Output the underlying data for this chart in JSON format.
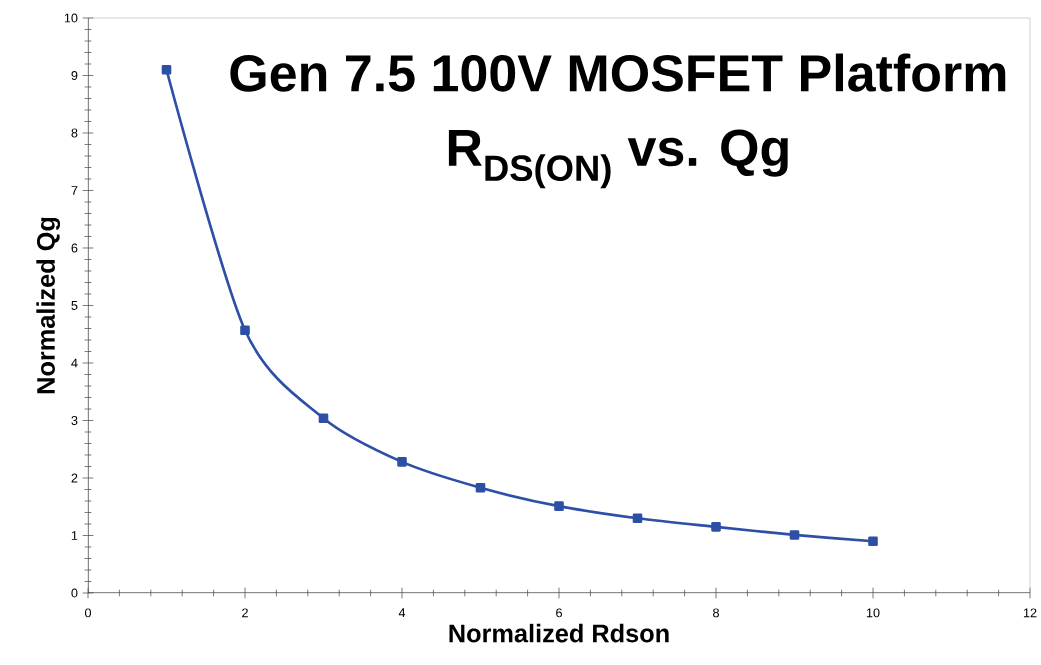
{
  "chart_data": {
    "type": "line",
    "title": "Gen 7.5 100V MOSFET Platform",
    "subtitle": "R$_{DS(ON)}$ vs. Qg",
    "xlabel": "Normalized Rdson",
    "ylabel": "Normalized Qg",
    "x": [
      1,
      2,
      3,
      4,
      5,
      6,
      7,
      8,
      9,
      10
    ],
    "series": [
      {
        "color": "#2e4fa6",
        "values": [
          9.1,
          4.57,
          3.04,
          2.28,
          1.83,
          1.51,
          1.3,
          1.15,
          1.01,
          0.9
        ]
      }
    ],
    "xlim": [
      0,
      12
    ],
    "ylim": [
      0,
      10
    ],
    "xticks": [
      0,
      2,
      4,
      6,
      8,
      10,
      12
    ],
    "yticks": [
      0,
      1,
      2,
      3,
      4,
      5,
      6,
      7,
      8,
      9,
      10
    ],
    "marker": "square",
    "line_style": "solid"
  }
}
